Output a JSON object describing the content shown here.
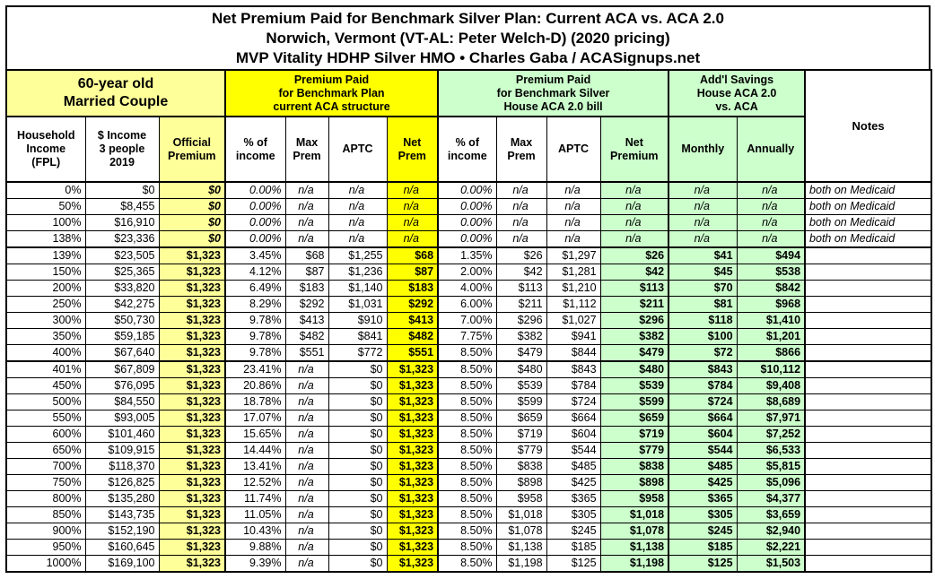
{
  "title": {
    "line1": "Net Premium Paid for Benchmark Silver Plan: Current ACA vs. ACA 2.0",
    "line2": "Norwich, Vermont (VT-AL: Peter Welch-D) (2020 pricing)",
    "line3": "MVP Vitality HDHP Silver HMO • Charles Gaba / ACASignups.net"
  },
  "colors": {
    "light_yellow": "#FFFF99",
    "bright_yellow": "#FFFF00",
    "light_green": "#CCFFCC",
    "border": "#000000"
  },
  "group_header": {
    "demographic": [
      "60-year old",
      "Married Couple"
    ],
    "aca": [
      "Premium Paid",
      "for Benchmark Plan",
      "current ACA structure"
    ],
    "aca2": [
      "Premium Paid",
      "for Benchmark Silver",
      "House ACA 2.0 bill"
    ],
    "savings": [
      "Add'l Savings",
      "House ACA 2.0",
      "vs. ACA"
    ],
    "notes": "Notes"
  },
  "column_header": {
    "fpl": [
      "Household",
      "Income",
      "(FPL)"
    ],
    "income": [
      "$ Income",
      "3 people",
      "2019"
    ],
    "official": [
      "Official",
      "Premium"
    ],
    "aca_pct": [
      "% of",
      "income"
    ],
    "aca_max": [
      "Max",
      "Prem"
    ],
    "aca_aptc": "APTC",
    "aca_net": [
      "Net",
      "Prem"
    ],
    "aca2_pct": [
      "% of",
      "income"
    ],
    "aca2_max": [
      "Max",
      "Prem"
    ],
    "aca2_aptc": "APTC",
    "aca2_net": [
      "Net",
      "Premium"
    ],
    "monthly": "Monthly",
    "annually": "Annually"
  },
  "rows": [
    {
      "cells": [
        "0%",
        "$0",
        "$0",
        "0.00%",
        "n/a",
        "n/a",
        "n/a",
        "0.00%",
        "n/a",
        "n/a",
        "n/a",
        "n/a",
        "n/a",
        "both on Medicaid"
      ],
      "medicaid": true
    },
    {
      "cells": [
        "50%",
        "$8,455",
        "$0",
        "0.00%",
        "n/a",
        "n/a",
        "n/a",
        "0.00%",
        "n/a",
        "n/a",
        "n/a",
        "n/a",
        "n/a",
        "both on Medicaid"
      ],
      "medicaid": true
    },
    {
      "cells": [
        "100%",
        "$16,910",
        "$0",
        "0.00%",
        "n/a",
        "n/a",
        "n/a",
        "0.00%",
        "n/a",
        "n/a",
        "n/a",
        "n/a",
        "n/a",
        "both on Medicaid"
      ],
      "medicaid": true
    },
    {
      "cells": [
        "138%",
        "$23,336",
        "$0",
        "0.00%",
        "n/a",
        "n/a",
        "n/a",
        "0.00%",
        "n/a",
        "n/a",
        "n/a",
        "n/a",
        "n/a",
        "both on Medicaid"
      ],
      "medicaid": true
    },
    {
      "cells": [
        "139%",
        "$23,505",
        "$1,323",
        "3.45%",
        "$68",
        "$1,255",
        "$68",
        "1.35%",
        "$26",
        "$1,297",
        "$26",
        "$41",
        "$494",
        ""
      ],
      "sep": true
    },
    {
      "cells": [
        "150%",
        "$25,365",
        "$1,323",
        "4.12%",
        "$87",
        "$1,236",
        "$87",
        "2.00%",
        "$42",
        "$1,281",
        "$42",
        "$45",
        "$538",
        ""
      ]
    },
    {
      "cells": [
        "200%",
        "$33,820",
        "$1,323",
        "6.49%",
        "$183",
        "$1,140",
        "$183",
        "4.00%",
        "$113",
        "$1,210",
        "$113",
        "$70",
        "$842",
        ""
      ]
    },
    {
      "cells": [
        "250%",
        "$42,275",
        "$1,323",
        "8.29%",
        "$292",
        "$1,031",
        "$292",
        "6.00%",
        "$211",
        "$1,112",
        "$211",
        "$81",
        "$968",
        ""
      ]
    },
    {
      "cells": [
        "300%",
        "$50,730",
        "$1,323",
        "9.78%",
        "$413",
        "$910",
        "$413",
        "7.00%",
        "$296",
        "$1,027",
        "$296",
        "$118",
        "$1,410",
        ""
      ]
    },
    {
      "cells": [
        "350%",
        "$59,185",
        "$1,323",
        "9.78%",
        "$482",
        "$841",
        "$482",
        "7.75%",
        "$382",
        "$941",
        "$382",
        "$100",
        "$1,201",
        ""
      ]
    },
    {
      "cells": [
        "400%",
        "$67,640",
        "$1,323",
        "9.78%",
        "$551",
        "$772",
        "$551",
        "8.50%",
        "$479",
        "$844",
        "$479",
        "$72",
        "$866",
        ""
      ]
    },
    {
      "cells": [
        "401%",
        "$67,809",
        "$1,323",
        "23.41%",
        "n/a",
        "$0",
        "$1,323",
        "8.50%",
        "$480",
        "$843",
        "$480",
        "$843",
        "$10,112",
        ""
      ],
      "sep": true
    },
    {
      "cells": [
        "450%",
        "$76,095",
        "$1,323",
        "20.86%",
        "n/a",
        "$0",
        "$1,323",
        "8.50%",
        "$539",
        "$784",
        "$539",
        "$784",
        "$9,408",
        ""
      ]
    },
    {
      "cells": [
        "500%",
        "$84,550",
        "$1,323",
        "18.78%",
        "n/a",
        "$0",
        "$1,323",
        "8.50%",
        "$599",
        "$724",
        "$599",
        "$724",
        "$8,689",
        ""
      ]
    },
    {
      "cells": [
        "550%",
        "$93,005",
        "$1,323",
        "17.07%",
        "n/a",
        "$0",
        "$1,323",
        "8.50%",
        "$659",
        "$664",
        "$659",
        "$664",
        "$7,971",
        ""
      ]
    },
    {
      "cells": [
        "600%",
        "$101,460",
        "$1,323",
        "15.65%",
        "n/a",
        "$0",
        "$1,323",
        "8.50%",
        "$719",
        "$604",
        "$719",
        "$604",
        "$7,252",
        ""
      ]
    },
    {
      "cells": [
        "650%",
        "$109,915",
        "$1,323",
        "14.44%",
        "n/a",
        "$0",
        "$1,323",
        "8.50%",
        "$779",
        "$544",
        "$779",
        "$544",
        "$6,533",
        ""
      ]
    },
    {
      "cells": [
        "700%",
        "$118,370",
        "$1,323",
        "13.41%",
        "n/a",
        "$0",
        "$1,323",
        "8.50%",
        "$838",
        "$485",
        "$838",
        "$485",
        "$5,815",
        ""
      ]
    },
    {
      "cells": [
        "750%",
        "$126,825",
        "$1,323",
        "12.52%",
        "n/a",
        "$0",
        "$1,323",
        "8.50%",
        "$898",
        "$425",
        "$898",
        "$425",
        "$5,096",
        ""
      ]
    },
    {
      "cells": [
        "800%",
        "$135,280",
        "$1,323",
        "11.74%",
        "n/a",
        "$0",
        "$1,323",
        "8.50%",
        "$958",
        "$365",
        "$958",
        "$365",
        "$4,377",
        ""
      ]
    },
    {
      "cells": [
        "850%",
        "$143,735",
        "$1,323",
        "11.05%",
        "n/a",
        "$0",
        "$1,323",
        "8.50%",
        "$1,018",
        "$305",
        "$1,018",
        "$305",
        "$3,659",
        ""
      ]
    },
    {
      "cells": [
        "900%",
        "$152,190",
        "$1,323",
        "10.43%",
        "n/a",
        "$0",
        "$1,323",
        "8.50%",
        "$1,078",
        "$245",
        "$1,078",
        "$245",
        "$2,940",
        ""
      ]
    },
    {
      "cells": [
        "950%",
        "$160,645",
        "$1,323",
        "9.88%",
        "n/a",
        "$0",
        "$1,323",
        "8.50%",
        "$1,138",
        "$185",
        "$1,138",
        "$185",
        "$2,221",
        ""
      ]
    },
    {
      "cells": [
        "1000%",
        "$169,100",
        "$1,323",
        "9.39%",
        "n/a",
        "$0",
        "$1,323",
        "8.50%",
        "$1,198",
        "$125",
        "$1,198",
        "$125",
        "$1,503",
        ""
      ]
    }
  ]
}
